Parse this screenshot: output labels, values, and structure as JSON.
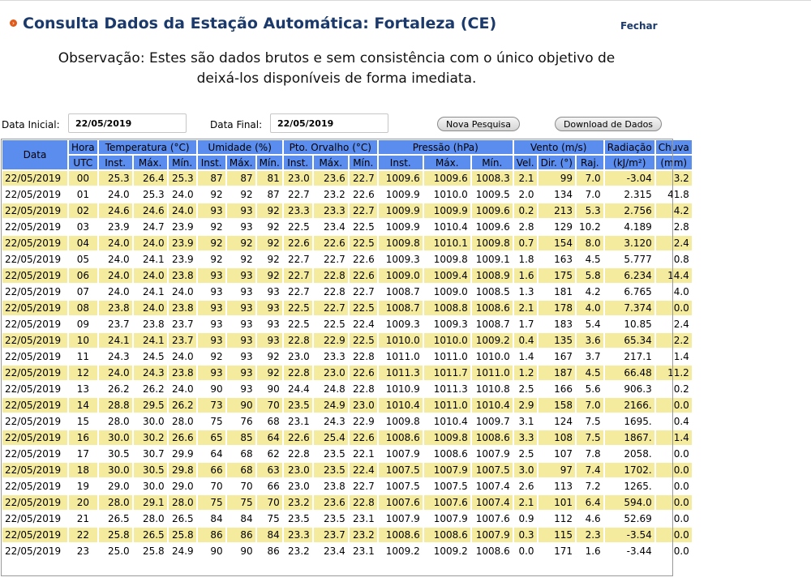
{
  "page": {
    "title": "Consulta Dados da Estação Automática: Fortaleza (CE)",
    "close_label": "Fechar",
    "observation_line1": "Observação: Estes são dados brutos e sem consistência com o único objetivo de",
    "observation_line2": "deixá-los disponíveis de forma imediata."
  },
  "form": {
    "start_label": "Data Inicial:",
    "start_value": "22/05/2019",
    "end_label": "Data Final:",
    "end_value": "22/05/2019",
    "new_search_label": "Nova Pesquisa",
    "download_label": "Download de Dados"
  },
  "table": {
    "groups": [
      "Data",
      "Hora",
      "Temperatura (°C)",
      "Umidade (%)",
      "Pto. Orvalho (°C)",
      "Pressão (hPa)",
      "Vento (m/s)",
      "Radiação",
      "Chuva"
    ],
    "subheaders": [
      "UTC",
      "Inst.",
      "Máx.",
      "Mín.",
      "Inst.",
      "Máx.",
      "Mín.",
      "Inst.",
      "Máx.",
      "Mín.",
      "Inst.",
      "Máx.",
      "Mín.",
      "Vel.",
      "Dir. (°)",
      "Raj.",
      "(kJ/m²)",
      "(mm)"
    ],
    "rows": [
      [
        "22/05/2019",
        "00",
        "25.3",
        "26.4",
        "25.3",
        "87",
        "87",
        "81",
        "23.0",
        "23.6",
        "22.7",
        "1009.6",
        "1009.6",
        "1008.3",
        "2.1",
        "99",
        "7.0",
        "-3.04",
        "3.2"
      ],
      [
        "22/05/2019",
        "01",
        "24.0",
        "25.3",
        "24.0",
        "92",
        "92",
        "87",
        "22.7",
        "23.2",
        "22.6",
        "1009.9",
        "1010.0",
        "1009.5",
        "2.0",
        "134",
        "7.0",
        "2.315",
        "41.8"
      ],
      [
        "22/05/2019",
        "02",
        "24.6",
        "24.6",
        "24.0",
        "93",
        "93",
        "92",
        "23.3",
        "23.3",
        "22.7",
        "1009.9",
        "1009.9",
        "1009.6",
        "0.2",
        "213",
        "5.3",
        "2.756",
        "4.2"
      ],
      [
        "22/05/2019",
        "03",
        "23.9",
        "24.7",
        "23.9",
        "92",
        "93",
        "92",
        "22.5",
        "23.4",
        "22.5",
        "1009.9",
        "1010.4",
        "1009.6",
        "2.8",
        "129",
        "10.2",
        "4.189",
        "2.8"
      ],
      [
        "22/05/2019",
        "04",
        "24.0",
        "24.0",
        "23.9",
        "92",
        "92",
        "92",
        "22.6",
        "22.6",
        "22.5",
        "1009.8",
        "1010.1",
        "1009.8",
        "0.7",
        "154",
        "8.0",
        "3.120",
        "2.4"
      ],
      [
        "22/05/2019",
        "05",
        "24.0",
        "24.1",
        "23.9",
        "92",
        "92",
        "92",
        "22.7",
        "22.7",
        "22.6",
        "1009.3",
        "1009.8",
        "1009.1",
        "1.8",
        "163",
        "4.5",
        "5.777",
        "0.8"
      ],
      [
        "22/05/2019",
        "06",
        "24.0",
        "24.0",
        "23.8",
        "93",
        "93",
        "92",
        "22.7",
        "22.8",
        "22.6",
        "1009.0",
        "1009.4",
        "1008.9",
        "1.6",
        "175",
        "5.8",
        "6.234",
        "14.4"
      ],
      [
        "22/05/2019",
        "07",
        "24.0",
        "24.1",
        "24.0",
        "93",
        "93",
        "93",
        "22.7",
        "22.8",
        "22.7",
        "1008.7",
        "1009.0",
        "1008.5",
        "1.3",
        "181",
        "4.2",
        "6.765",
        "4.0"
      ],
      [
        "22/05/2019",
        "08",
        "23.8",
        "24.0",
        "23.8",
        "93",
        "93",
        "93",
        "22.5",
        "22.7",
        "22.5",
        "1008.7",
        "1008.8",
        "1008.6",
        "2.1",
        "178",
        "4.0",
        "7.374",
        "0.0"
      ],
      [
        "22/05/2019",
        "09",
        "23.7",
        "23.8",
        "23.7",
        "93",
        "93",
        "93",
        "22.5",
        "22.5",
        "22.4",
        "1009.3",
        "1009.3",
        "1008.7",
        "1.7",
        "183",
        "5.4",
        "10.85",
        "2.4"
      ],
      [
        "22/05/2019",
        "10",
        "24.1",
        "24.1",
        "23.7",
        "93",
        "93",
        "93",
        "22.8",
        "22.9",
        "22.5",
        "1010.0",
        "1010.0",
        "1009.2",
        "0.4",
        "135",
        "3.6",
        "65.34",
        "2.2"
      ],
      [
        "22/05/2019",
        "11",
        "24.3",
        "24.5",
        "24.0",
        "92",
        "93",
        "92",
        "23.0",
        "23.3",
        "22.8",
        "1011.0",
        "1011.0",
        "1010.0",
        "1.4",
        "167",
        "3.7",
        "217.1",
        "1.4"
      ],
      [
        "22/05/2019",
        "12",
        "24.0",
        "24.3",
        "23.8",
        "93",
        "93",
        "92",
        "22.8",
        "23.0",
        "22.6",
        "1011.3",
        "1011.7",
        "1011.0",
        "1.2",
        "187",
        "4.5",
        "66.48",
        "11.2"
      ],
      [
        "22/05/2019",
        "13",
        "26.2",
        "26.2",
        "24.0",
        "90",
        "93",
        "90",
        "24.4",
        "24.8",
        "22.8",
        "1010.9",
        "1011.3",
        "1010.8",
        "2.5",
        "166",
        "5.6",
        "906.3",
        "0.2"
      ],
      [
        "22/05/2019",
        "14",
        "28.8",
        "29.5",
        "26.2",
        "73",
        "90",
        "70",
        "23.5",
        "24.9",
        "23.0",
        "1010.4",
        "1011.0",
        "1010.4",
        "2.9",
        "158",
        "7.0",
        "2166.",
        "0.0"
      ],
      [
        "22/05/2019",
        "15",
        "28.0",
        "30.0",
        "28.0",
        "75",
        "76",
        "68",
        "23.1",
        "24.3",
        "22.9",
        "1009.8",
        "1010.4",
        "1009.7",
        "3.1",
        "124",
        "7.5",
        "1695.",
        "0.4"
      ],
      [
        "22/05/2019",
        "16",
        "30.0",
        "30.2",
        "26.6",
        "65",
        "85",
        "64",
        "22.6",
        "25.4",
        "22.6",
        "1008.6",
        "1009.8",
        "1008.6",
        "3.3",
        "108",
        "7.5",
        "1867.",
        "1.4"
      ],
      [
        "22/05/2019",
        "17",
        "30.5",
        "30.7",
        "29.9",
        "64",
        "68",
        "62",
        "22.8",
        "23.5",
        "22.1",
        "1007.9",
        "1008.6",
        "1007.9",
        "2.5",
        "107",
        "7.8",
        "2058.",
        "0.0"
      ],
      [
        "22/05/2019",
        "18",
        "30.0",
        "30.5",
        "29.8",
        "66",
        "68",
        "63",
        "23.0",
        "23.5",
        "22.4",
        "1007.5",
        "1007.9",
        "1007.5",
        "3.0",
        "97",
        "7.4",
        "1702.",
        "0.0"
      ],
      [
        "22/05/2019",
        "19",
        "29.0",
        "30.0",
        "29.0",
        "70",
        "70",
        "66",
        "23.0",
        "23.8",
        "22.7",
        "1007.5",
        "1007.5",
        "1007.4",
        "2.6",
        "113",
        "7.2",
        "1265.",
        "0.0"
      ],
      [
        "22/05/2019",
        "20",
        "28.0",
        "29.1",
        "28.0",
        "75",
        "75",
        "70",
        "23.2",
        "23.6",
        "22.8",
        "1007.6",
        "1007.6",
        "1007.4",
        "2.1",
        "101",
        "6.4",
        "594.0",
        "0.0"
      ],
      [
        "22/05/2019",
        "21",
        "26.5",
        "28.0",
        "26.5",
        "84",
        "84",
        "75",
        "23.5",
        "23.5",
        "23.1",
        "1007.9",
        "1007.9",
        "1007.6",
        "0.9",
        "112",
        "4.6",
        "52.69",
        "0.0"
      ],
      [
        "22/05/2019",
        "22",
        "25.8",
        "26.5",
        "25.8",
        "86",
        "86",
        "84",
        "23.3",
        "23.7",
        "23.2",
        "1008.6",
        "1008.6",
        "1007.9",
        "0.3",
        "115",
        "2.3",
        "-3.54",
        "0.0"
      ],
      [
        "22/05/2019",
        "23",
        "25.0",
        "25.8",
        "24.9",
        "90",
        "90",
        "86",
        "23.2",
        "23.4",
        "23.1",
        "1009.2",
        "1009.2",
        "1008.6",
        "0.0",
        "171",
        "1.6",
        "-3.44",
        "0.0"
      ]
    ]
  }
}
